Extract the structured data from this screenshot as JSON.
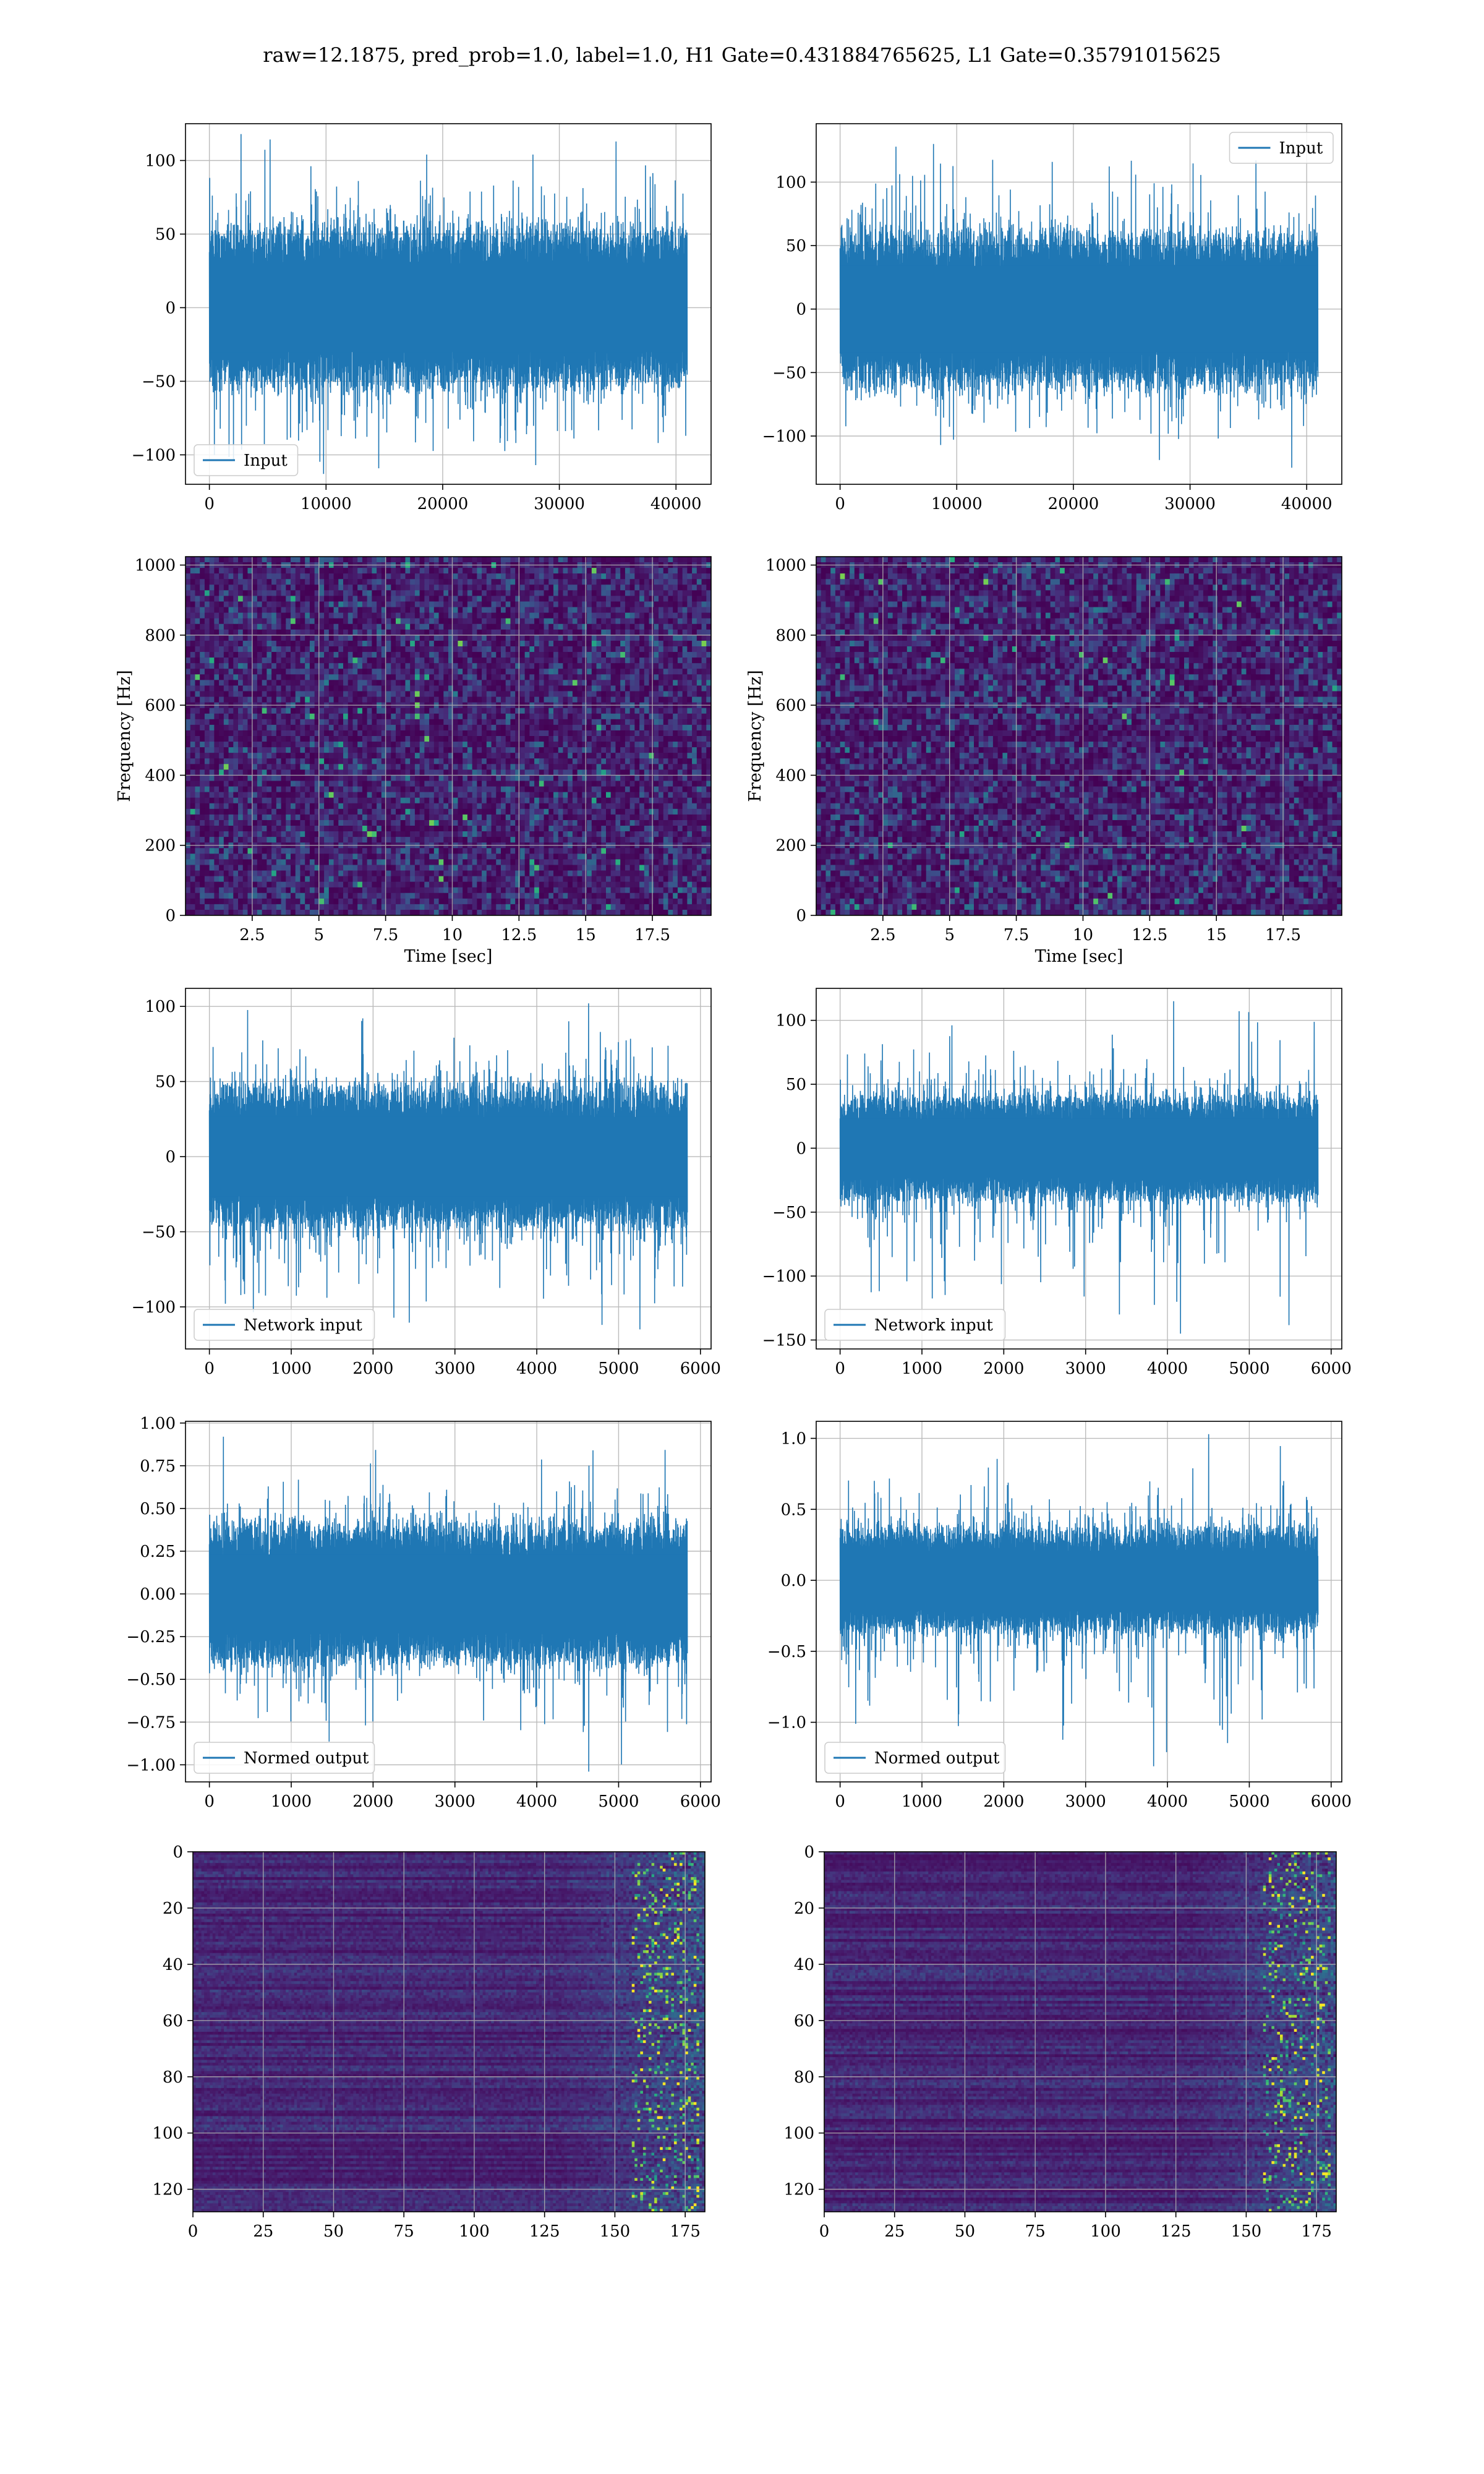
{
  "suptitle": "raw=12.1875, pred_prob=1.0, label=1.0, H1 Gate=0.431884765625, L1 Gate=0.35791015625",
  "colors": {
    "line": "#1f77b4",
    "grid": "#b0b0b0",
    "spine": "#000000"
  },
  "chart_data": [
    {
      "id": "input-h1",
      "type": "line",
      "series": [
        {
          "name": "Input"
        }
      ],
      "legend_loc": "lower-left",
      "xlim": [
        -2048,
        43008
      ],
      "ylim": [
        -120,
        125
      ],
      "xticks": [
        0,
        10000,
        20000,
        30000,
        40000
      ],
      "yticks": [
        -100,
        -50,
        0,
        50,
        100
      ],
      "n_points": 40960,
      "envelope": {
        "typical": 55,
        "max": 118,
        "min": -113
      },
      "grid": true
    },
    {
      "id": "input-l1",
      "type": "line",
      "series": [
        {
          "name": "Input"
        }
      ],
      "legend_loc": "upper-right",
      "xlim": [
        -2048,
        43008
      ],
      "ylim": [
        -138,
        146
      ],
      "xticks": [
        0,
        10000,
        20000,
        30000,
        40000
      ],
      "yticks": [
        -100,
        -50,
        0,
        50,
        100
      ],
      "n_points": 40960,
      "envelope": {
        "typical": 62,
        "max": 130,
        "min": -125
      },
      "grid": true
    },
    {
      "id": "spec-h1",
      "type": "heatmap",
      "colormap": "viridis",
      "xlim": [
        0,
        19.7
      ],
      "ylim": [
        0,
        1024
      ],
      "xticks": [
        2.5,
        5.0,
        7.5,
        10.0,
        12.5,
        15.0,
        17.5
      ],
      "yticks": [
        0,
        200,
        400,
        600,
        800,
        1000
      ],
      "xlabel": "Time [sec]",
      "ylabel": "Frequency [Hz]",
      "grid": true
    },
    {
      "id": "spec-l1",
      "type": "heatmap",
      "colormap": "viridis",
      "xlim": [
        0,
        19.7
      ],
      "ylim": [
        0,
        1024
      ],
      "xticks": [
        2.5,
        5.0,
        7.5,
        10.0,
        12.5,
        15.0,
        17.5
      ],
      "yticks": [
        0,
        200,
        400,
        600,
        800,
        1000
      ],
      "xlabel": "Time [sec]",
      "ylabel": "Frequency [Hz]",
      "grid": true
    },
    {
      "id": "net-h1",
      "type": "line",
      "series": [
        {
          "name": "Network input"
        }
      ],
      "legend_loc": "lower-left",
      "xlim": [
        -292,
        6130
      ],
      "ylim": [
        -128,
        112
      ],
      "xticks": [
        0,
        1000,
        2000,
        3000,
        4000,
        5000,
        6000
      ],
      "yticks": [
        -100,
        -50,
        0,
        50,
        100
      ],
      "n_points": 5840,
      "envelope": {
        "typical": 48,
        "max": 102,
        "min": -115
      },
      "grid": true
    },
    {
      "id": "net-l1",
      "type": "line",
      "series": [
        {
          "name": "Network input"
        }
      ],
      "legend_loc": "lower-left",
      "xlim": [
        -292,
        6130
      ],
      "ylim": [
        -157,
        125
      ],
      "xticks": [
        0,
        1000,
        2000,
        3000,
        4000,
        5000,
        6000
      ],
      "yticks": [
        -150,
        -100,
        -50,
        0,
        50,
        100
      ],
      "n_points": 5840,
      "envelope": {
        "typical": 42,
        "max": 115,
        "min": -145
      },
      "grid": true
    },
    {
      "id": "norm-h1",
      "type": "line",
      "series": [
        {
          "name": "Normed output"
        }
      ],
      "legend_loc": "lower-left",
      "xlim": [
        -292,
        6130
      ],
      "ylim": [
        -1.1,
        1.01
      ],
      "xticks": [
        0,
        1000,
        2000,
        3000,
        4000,
        5000,
        6000
      ],
      "yticks": [
        -1.0,
        -0.75,
        -0.5,
        -0.25,
        0.0,
        0.25,
        0.5,
        0.75,
        1.0
      ],
      "ytick_labels": [
        "−1.00",
        "−0.75",
        "−0.50",
        "−0.25",
        "0.00",
        "0.25",
        "0.50",
        "0.75",
        "1.00"
      ],
      "n_points": 5840,
      "envelope": {
        "typical": 0.42,
        "max": 0.92,
        "min": -1.04
      },
      "grid": true
    },
    {
      "id": "norm-l1",
      "type": "line",
      "series": [
        {
          "name": "Normed output"
        }
      ],
      "legend_loc": "lower-left",
      "xlim": [
        -292,
        6130
      ],
      "ylim": [
        -1.42,
        1.12
      ],
      "xticks": [
        0,
        1000,
        2000,
        3000,
        4000,
        5000,
        6000
      ],
      "yticks": [
        -1.0,
        -0.5,
        0.0,
        0.5,
        1.0
      ],
      "ytick_labels": [
        "−1.0",
        "−0.5",
        "0.0",
        "0.5",
        "1.0"
      ],
      "n_points": 5840,
      "envelope": {
        "typical": 0.38,
        "max": 1.03,
        "min": -1.31
      },
      "grid": true
    },
    {
      "id": "feat-h1",
      "type": "heatmap",
      "colormap": "viridis",
      "xlim": [
        0,
        182
      ],
      "ylim": [
        128,
        0
      ],
      "xticks": [
        0,
        25,
        50,
        75,
        100,
        125,
        150,
        175
      ],
      "yticks": [
        0,
        20,
        40,
        60,
        80,
        100,
        120
      ],
      "grid": true
    },
    {
      "id": "feat-l1",
      "type": "heatmap",
      "colormap": "viridis",
      "xlim": [
        0,
        182
      ],
      "ylim": [
        128,
        0
      ],
      "xticks": [
        0,
        25,
        50,
        75,
        100,
        125,
        150,
        175
      ],
      "yticks": [
        0,
        20,
        40,
        60,
        80,
        100,
        120
      ],
      "grid": true
    }
  ]
}
